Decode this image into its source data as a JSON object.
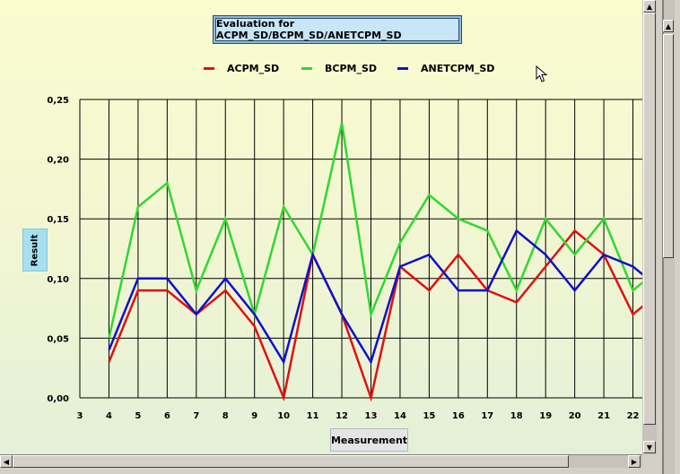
{
  "chart_data": {
    "type": "line",
    "title": "Evaluation for ACPM_SD/BCPM_SD/ANETCPM_SD",
    "xlabel": "Measurement",
    "ylabel": "Result",
    "x": [
      3,
      4,
      5,
      6,
      7,
      8,
      9,
      10,
      11,
      12,
      13,
      14,
      15,
      16,
      17,
      18,
      19,
      20,
      21,
      22
    ],
    "xlim": [
      3,
      22.5
    ],
    "ylim": [
      0,
      0.25
    ],
    "yticks": [
      "0,00",
      "0,05",
      "0,10",
      "0,15",
      "0,20",
      "0,25"
    ],
    "ytick_values": [
      0,
      0.05,
      0.1,
      0.15,
      0.2,
      0.25
    ],
    "grid": true,
    "legend_position": "top",
    "series": [
      {
        "name": "ACPM_SD",
        "color": "#e01010",
        "x": [
          4,
          5,
          6,
          7,
          8,
          9,
          10,
          11,
          12,
          13,
          14,
          15,
          16,
          17,
          18,
          19,
          20,
          21,
          22,
          22.5
        ],
        "values": [
          0.03,
          0.09,
          0.09,
          0.07,
          0.09,
          0.06,
          0.0,
          0.12,
          0.07,
          0.0,
          0.11,
          0.09,
          0.12,
          0.09,
          0.08,
          0.11,
          0.14,
          0.12,
          0.07,
          0.08
        ]
      },
      {
        "name": "BCPM_SD",
        "color": "#30d830",
        "x": [
          4,
          5,
          6,
          7,
          8,
          9,
          10,
          11,
          12,
          13,
          14,
          15,
          16,
          17,
          18,
          19,
          20,
          21,
          22,
          22.5
        ],
        "values": [
          0.05,
          0.16,
          0.18,
          0.09,
          0.15,
          0.07,
          0.16,
          0.12,
          0.23,
          0.07,
          0.13,
          0.17,
          0.15,
          0.14,
          0.09,
          0.15,
          0.12,
          0.15,
          0.09,
          0.1
        ]
      },
      {
        "name": "ANETCPM_SD",
        "color": "#1010c8",
        "x": [
          4,
          5,
          6,
          7,
          8,
          9,
          10,
          11,
          12,
          13,
          14,
          15,
          16,
          17,
          18,
          19,
          20,
          21,
          22,
          22.5
        ],
        "values": [
          0.04,
          0.1,
          0.1,
          0.07,
          0.1,
          0.07,
          0.03,
          0.12,
          0.07,
          0.03,
          0.11,
          0.12,
          0.09,
          0.09,
          0.14,
          0.12,
          0.09,
          0.12,
          0.11,
          0.1
        ]
      }
    ]
  }
}
